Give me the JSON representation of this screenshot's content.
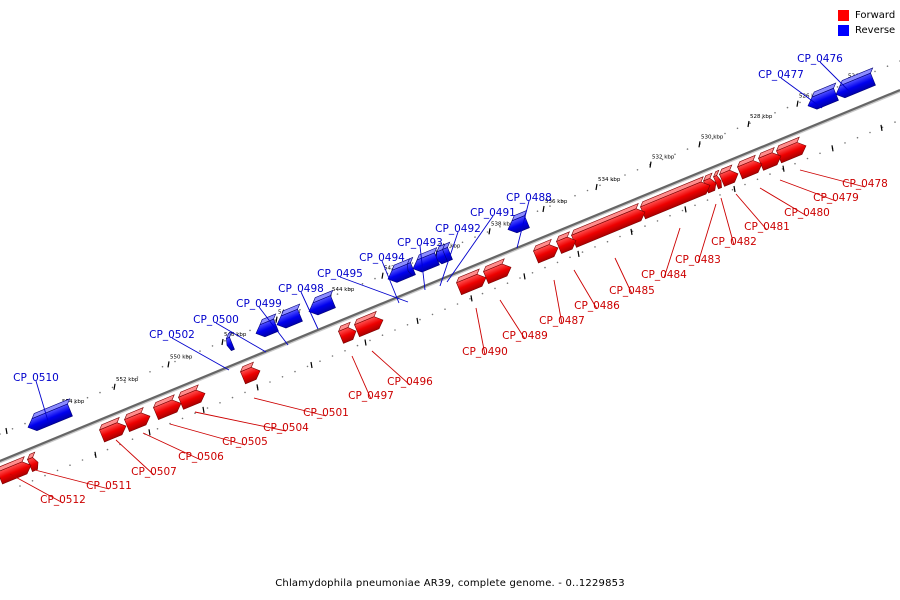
{
  "legend": {
    "forward": {
      "label": "Forward",
      "color": "#ff0000"
    },
    "reverse": {
      "label": "Reverse",
      "color": "#0000ff"
    }
  },
  "caption": "Chlamydophila pneumoniae AR39, complete genome. - 0..1229853",
  "ticks": [
    "524 kbp",
    "526 kbp",
    "528 kbp",
    "530 kbp",
    "532 kbp",
    "534 kbp",
    "536 kbp",
    "538 kbp",
    "540 kbp",
    "542 kbp",
    "544 kbp",
    "546 kbp",
    "548 kbp",
    "550 kbp",
    "552 kbp",
    "554 kbp"
  ],
  "genes_reverse": [
    {
      "name": "CP_0476"
    },
    {
      "name": "CP_0477"
    },
    {
      "name": "CP_0488"
    },
    {
      "name": "CP_0491"
    },
    {
      "name": "CP_0492"
    },
    {
      "name": "CP_0493"
    },
    {
      "name": "CP_0494"
    },
    {
      "name": "CP_0495"
    },
    {
      "name": "CP_0498"
    },
    {
      "name": "CP_0499"
    },
    {
      "name": "CP_0500"
    },
    {
      "name": "CP_0502"
    },
    {
      "name": "CP_0510"
    }
  ],
  "genes_forward": [
    {
      "name": "CP_0478"
    },
    {
      "name": "CP_0479"
    },
    {
      "name": "CP_0480"
    },
    {
      "name": "CP_0481"
    },
    {
      "name": "CP_0482"
    },
    {
      "name": "CP_0483"
    },
    {
      "name": "CP_0484"
    },
    {
      "name": "CP_0485"
    },
    {
      "name": "CP_0486"
    },
    {
      "name": "CP_0487"
    },
    {
      "name": "CP_0489"
    },
    {
      "name": "CP_0490"
    },
    {
      "name": "CP_0496"
    },
    {
      "name": "CP_0497"
    },
    {
      "name": "CP_0501"
    },
    {
      "name": "CP_0504"
    },
    {
      "name": "CP_0505"
    },
    {
      "name": "CP_0506"
    },
    {
      "name": "CP_0507"
    },
    {
      "name": "CP_0511"
    },
    {
      "name": "CP_0512"
    }
  ]
}
